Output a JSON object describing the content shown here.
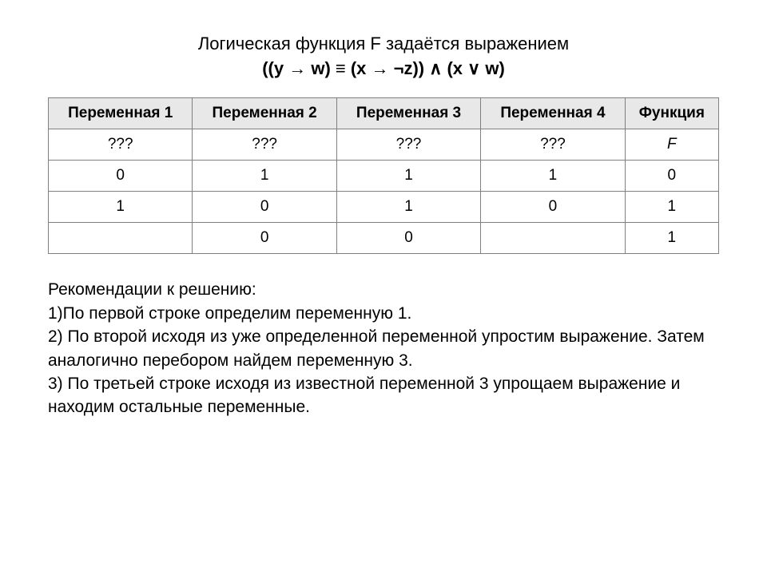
{
  "title": {
    "line1": "Логическая функция F задаётся выражением",
    "line2": "((y → w) ≡ (x → ¬z)) ∧ (x ∨ w)"
  },
  "table": {
    "type": "table",
    "columns": [
      "Переменная 1",
      "Переменная 2",
      "Переменная 3",
      "Переменная 4",
      "Функция"
    ],
    "rows": [
      [
        "???",
        "???",
        "???",
        "???",
        "F"
      ],
      [
        "0",
        "1",
        "1",
        "1",
        "0"
      ],
      [
        "1",
        "0",
        "1",
        "0",
        "1"
      ],
      [
        "",
        "0",
        "0",
        "",
        "1"
      ]
    ],
    "header_bg": "#e8e8e8",
    "border_color": "#808080",
    "cell_fontsize": 19,
    "italic_cells": [
      [
        0,
        4
      ]
    ]
  },
  "recommendations": {
    "heading": "Рекомендации к решению:",
    "items": [
      "1)По первой строке определим переменную 1.",
      "2) По второй исходя из уже определенной переменной упростим выражение. Затем аналогично перебором найдем переменную 3.",
      "3) По третьей строке исходя из известной переменной 3 упрощаем выражение и находим остальные переменные."
    ]
  }
}
